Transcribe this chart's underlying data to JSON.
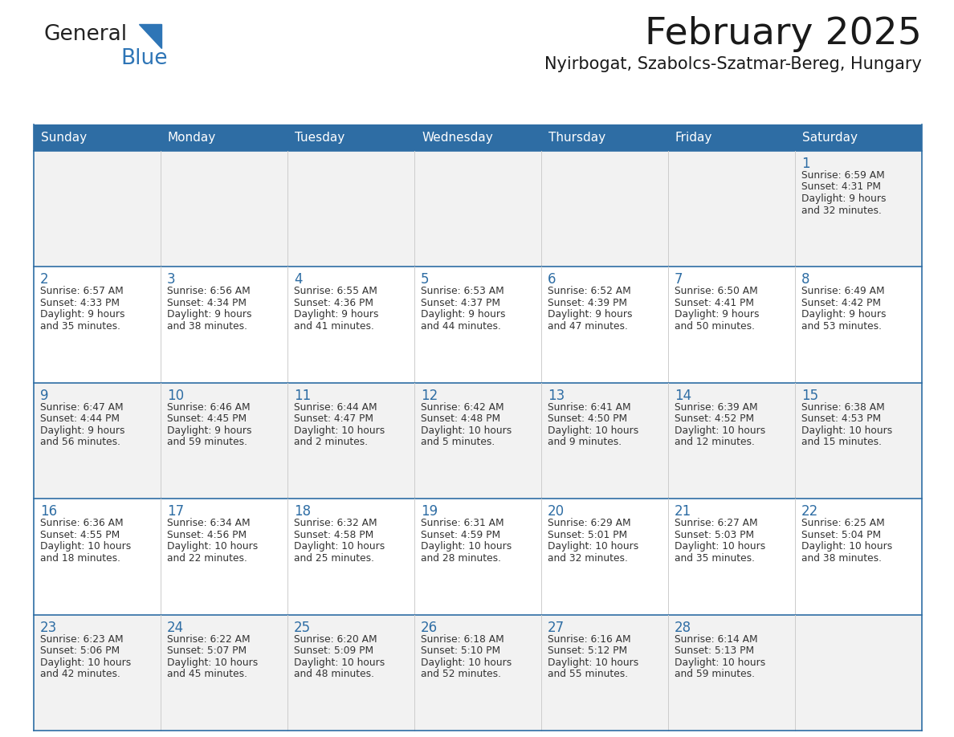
{
  "title": "February 2025",
  "subtitle": "Nyirbogat, Szabolcs-Szatmar-Bereg, Hungary",
  "days_of_week": [
    "Sunday",
    "Monday",
    "Tuesday",
    "Wednesday",
    "Thursday",
    "Friday",
    "Saturday"
  ],
  "header_bg": "#2E6DA4",
  "header_text": "#FFFFFF",
  "cell_bg_odd": "#F2F2F2",
  "cell_bg_even": "#FFFFFF",
  "border_color": "#2E6DA4",
  "cell_divider_color": "#CCCCCC",
  "day_number_color": "#2E6DA4",
  "text_color": "#333333",
  "title_color": "#1a1a1a",
  "logo_general_color": "#222222",
  "logo_blue_color": "#2E75B6",
  "calendar_data": [
    [
      null,
      null,
      null,
      null,
      null,
      null,
      {
        "day": 1,
        "sunrise": "6:59 AM",
        "sunset": "4:31 PM",
        "daylight": "9 hours and 32 minutes."
      }
    ],
    [
      {
        "day": 2,
        "sunrise": "6:57 AM",
        "sunset": "4:33 PM",
        "daylight": "9 hours and 35 minutes."
      },
      {
        "day": 3,
        "sunrise": "6:56 AM",
        "sunset": "4:34 PM",
        "daylight": "9 hours and 38 minutes."
      },
      {
        "day": 4,
        "sunrise": "6:55 AM",
        "sunset": "4:36 PM",
        "daylight": "9 hours and 41 minutes."
      },
      {
        "day": 5,
        "sunrise": "6:53 AM",
        "sunset": "4:37 PM",
        "daylight": "9 hours and 44 minutes."
      },
      {
        "day": 6,
        "sunrise": "6:52 AM",
        "sunset": "4:39 PM",
        "daylight": "9 hours and 47 minutes."
      },
      {
        "day": 7,
        "sunrise": "6:50 AM",
        "sunset": "4:41 PM",
        "daylight": "9 hours and 50 minutes."
      },
      {
        "day": 8,
        "sunrise": "6:49 AM",
        "sunset": "4:42 PM",
        "daylight": "9 hours and 53 minutes."
      }
    ],
    [
      {
        "day": 9,
        "sunrise": "6:47 AM",
        "sunset": "4:44 PM",
        "daylight": "9 hours and 56 minutes."
      },
      {
        "day": 10,
        "sunrise": "6:46 AM",
        "sunset": "4:45 PM",
        "daylight": "9 hours and 59 minutes."
      },
      {
        "day": 11,
        "sunrise": "6:44 AM",
        "sunset": "4:47 PM",
        "daylight": "10 hours and 2 minutes."
      },
      {
        "day": 12,
        "sunrise": "6:42 AM",
        "sunset": "4:48 PM",
        "daylight": "10 hours and 5 minutes."
      },
      {
        "day": 13,
        "sunrise": "6:41 AM",
        "sunset": "4:50 PM",
        "daylight": "10 hours and 9 minutes."
      },
      {
        "day": 14,
        "sunrise": "6:39 AM",
        "sunset": "4:52 PM",
        "daylight": "10 hours and 12 minutes."
      },
      {
        "day": 15,
        "sunrise": "6:38 AM",
        "sunset": "4:53 PM",
        "daylight": "10 hours and 15 minutes."
      }
    ],
    [
      {
        "day": 16,
        "sunrise": "6:36 AM",
        "sunset": "4:55 PM",
        "daylight": "10 hours and 18 minutes."
      },
      {
        "day": 17,
        "sunrise": "6:34 AM",
        "sunset": "4:56 PM",
        "daylight": "10 hours and 22 minutes."
      },
      {
        "day": 18,
        "sunrise": "6:32 AM",
        "sunset": "4:58 PM",
        "daylight": "10 hours and 25 minutes."
      },
      {
        "day": 19,
        "sunrise": "6:31 AM",
        "sunset": "4:59 PM",
        "daylight": "10 hours and 28 minutes."
      },
      {
        "day": 20,
        "sunrise": "6:29 AM",
        "sunset": "5:01 PM",
        "daylight": "10 hours and 32 minutes."
      },
      {
        "day": 21,
        "sunrise": "6:27 AM",
        "sunset": "5:03 PM",
        "daylight": "10 hours and 35 minutes."
      },
      {
        "day": 22,
        "sunrise": "6:25 AM",
        "sunset": "5:04 PM",
        "daylight": "10 hours and 38 minutes."
      }
    ],
    [
      {
        "day": 23,
        "sunrise": "6:23 AM",
        "sunset": "5:06 PM",
        "daylight": "10 hours and 42 minutes."
      },
      {
        "day": 24,
        "sunrise": "6:22 AM",
        "sunset": "5:07 PM",
        "daylight": "10 hours and 45 minutes."
      },
      {
        "day": 25,
        "sunrise": "6:20 AM",
        "sunset": "5:09 PM",
        "daylight": "10 hours and 48 minutes."
      },
      {
        "day": 26,
        "sunrise": "6:18 AM",
        "sunset": "5:10 PM",
        "daylight": "10 hours and 52 minutes."
      },
      {
        "day": 27,
        "sunrise": "6:16 AM",
        "sunset": "5:12 PM",
        "daylight": "10 hours and 55 minutes."
      },
      {
        "day": 28,
        "sunrise": "6:14 AM",
        "sunset": "5:13 PM",
        "daylight": "10 hours and 59 minutes."
      },
      null
    ]
  ]
}
